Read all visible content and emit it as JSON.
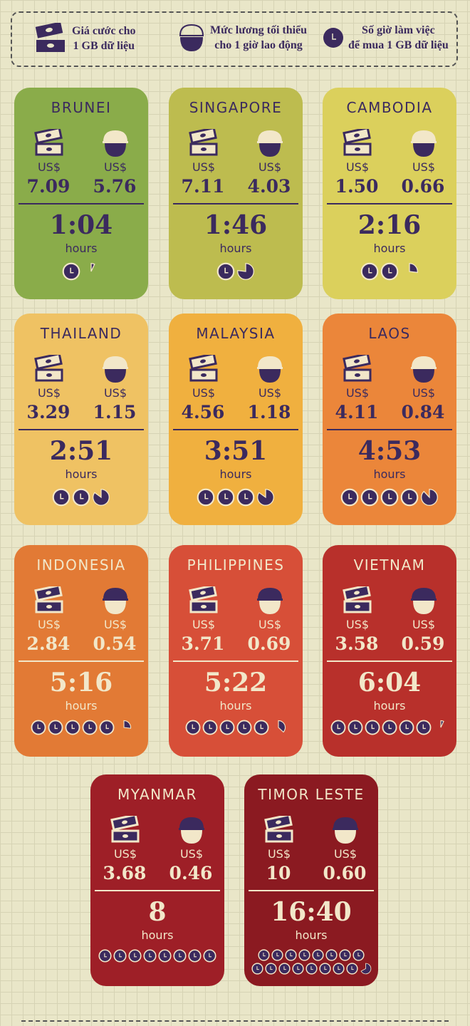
{
  "legend": [
    {
      "icon": "money-icon",
      "text": "Giá cước cho\n1 GB dữ liệu"
    },
    {
      "icon": "worker-helmet-icon",
      "text": "Mức lương tối thiểu\ncho 1 giờ lao động"
    },
    {
      "icon": "clock-icon",
      "text": "Số giờ làm việc\nđể mua 1 GB dữ liệu"
    }
  ],
  "colors": {
    "purple": "#3b2a5e",
    "cream": "#f2e7c9"
  },
  "countries": [
    {
      "name": "BRUNEI",
      "bg": "#8aac4a",
      "text": "dark",
      "currency": "US$",
      "data_price": "7.09",
      "wage": "5.76",
      "time": "1:04",
      "unit": "hours",
      "hours": 1.07
    },
    {
      "name": "SINGAPORE",
      "bg": "#bdbc4f",
      "text": "dark",
      "currency": "US$",
      "data_price": "7.11",
      "wage": "4.03",
      "time": "1:46",
      "unit": "hours",
      "hours": 1.77
    },
    {
      "name": "CAMBODIA",
      "bg": "#dbd05c",
      "text": "dark",
      "currency": "US$",
      "data_price": "1.50",
      "wage": "0.66",
      "time": "2:16",
      "unit": "hours",
      "hours": 2.27
    },
    {
      "name": "THAILAND",
      "bg": "#efc263",
      "text": "dark",
      "currency": "US$",
      "data_price": "3.29",
      "wage": "1.15",
      "time": "2:51",
      "unit": "hours",
      "hours": 2.85
    },
    {
      "name": "MALAYSIA",
      "bg": "#f0b03f",
      "text": "dark",
      "currency": "US$",
      "data_price": "4.56",
      "wage": "1.18",
      "time": "3:51",
      "unit": "hours",
      "hours": 3.85
    },
    {
      "name": "LAOS",
      "bg": "#eb863a",
      "text": "dark",
      "currency": "US$",
      "data_price": "4.11",
      "wage": "0.84",
      "time": "4:53",
      "unit": "hours",
      "hours": 4.88
    },
    {
      "name": "INDONESIA",
      "bg": "#e27a35",
      "text": "light",
      "currency": "US$",
      "data_price": "2.84",
      "wage": "0.54",
      "time": "5:16",
      "unit": "hours",
      "hours": 5.27
    },
    {
      "name": "PHILIPPINES",
      "bg": "#d74f38",
      "text": "light",
      "currency": "US$",
      "data_price": "3.71",
      "wage": "0.69",
      "time": "5:22",
      "unit": "hours",
      "hours": 5.37
    },
    {
      "name": "VIETNAM",
      "bg": "#b8302b",
      "text": "light",
      "currency": "US$",
      "data_price": "3.58",
      "wage": "0.59",
      "time": "6:04",
      "unit": "hours",
      "hours": 6.07
    },
    {
      "name": "MYANMAR",
      "bg": "#9e1f27",
      "text": "light",
      "currency": "US$",
      "data_price": "3.68",
      "wage": "0.46",
      "time": "8",
      "unit": "hours",
      "hours": 8
    },
    {
      "name": "TIMOR LESTE",
      "bg": "#8b1a21",
      "text": "light",
      "currency": "US$",
      "data_price": "10",
      "wage": "0.60",
      "time": "16:40",
      "unit": "hours",
      "hours": 16.67
    }
  ]
}
